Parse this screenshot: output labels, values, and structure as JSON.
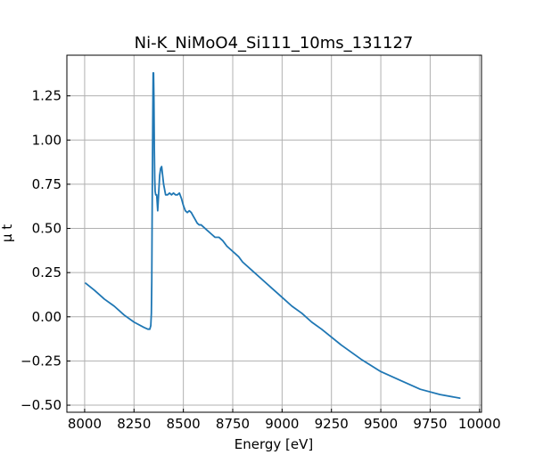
{
  "chart_data": {
    "type": "line",
    "title": "Ni-K_NiMoO4_Si111_10ms_131127",
    "xlabel": "Energy [eV]",
    "ylabel": "μ t",
    "xlim": [
      7910,
      10010
    ],
    "ylim": [
      -0.54,
      1.48
    ],
    "grid": true,
    "x_ticks": [
      8000,
      8250,
      8500,
      8750,
      9000,
      9250,
      9500,
      9750,
      10000
    ],
    "x_tick_labels": [
      "8000",
      "8250",
      "8500",
      "8750",
      "9000",
      "9250",
      "9500",
      "9750",
      "10000"
    ],
    "y_ticks": [
      -0.5,
      -0.25,
      0.0,
      0.25,
      0.5,
      0.75,
      1.0,
      1.25
    ],
    "y_tick_labels": [
      "−0.50",
      "−0.25",
      "0.00",
      "0.25",
      "0.50",
      "0.75",
      "1.00",
      "1.25"
    ],
    "series": [
      {
        "color": "#1f77b4",
        "x": [
          8005,
          8050,
          8100,
          8150,
          8200,
          8250,
          8300,
          8320,
          8330,
          8335,
          8338,
          8340,
          8342,
          8345,
          8347,
          8349,
          8351,
          8353,
          8355,
          8357,
          8360,
          8365,
          8370,
          8375,
          8380,
          8385,
          8390,
          8395,
          8400,
          8410,
          8420,
          8430,
          8440,
          8450,
          8460,
          8470,
          8480,
          8490,
          8500,
          8510,
          8520,
          8530,
          8540,
          8550,
          8560,
          8570,
          8580,
          8590,
          8600,
          8620,
          8640,
          8660,
          8680,
          8700,
          8720,
          8740,
          8760,
          8780,
          8800,
          8850,
          8900,
          8950,
          9000,
          9050,
          9100,
          9150,
          9200,
          9300,
          9400,
          9500,
          9600,
          9700,
          9800,
          9900
        ],
        "y": [
          0.19,
          0.15,
          0.1,
          0.06,
          0.01,
          -0.03,
          -0.06,
          -0.07,
          -0.07,
          -0.05,
          0.02,
          0.2,
          0.6,
          1.1,
          1.38,
          1.38,
          1.22,
          0.95,
          0.78,
          0.71,
          0.69,
          0.69,
          0.6,
          0.7,
          0.8,
          0.84,
          0.85,
          0.8,
          0.75,
          0.69,
          0.69,
          0.7,
          0.69,
          0.7,
          0.69,
          0.69,
          0.7,
          0.67,
          0.63,
          0.6,
          0.59,
          0.6,
          0.59,
          0.57,
          0.55,
          0.53,
          0.52,
          0.52,
          0.51,
          0.49,
          0.47,
          0.45,
          0.45,
          0.43,
          0.4,
          0.38,
          0.36,
          0.34,
          0.31,
          0.26,
          0.21,
          0.16,
          0.11,
          0.06,
          0.02,
          -0.03,
          -0.07,
          -0.16,
          -0.24,
          -0.31,
          -0.36,
          -0.41,
          -0.44,
          -0.46
        ]
      }
    ]
  }
}
